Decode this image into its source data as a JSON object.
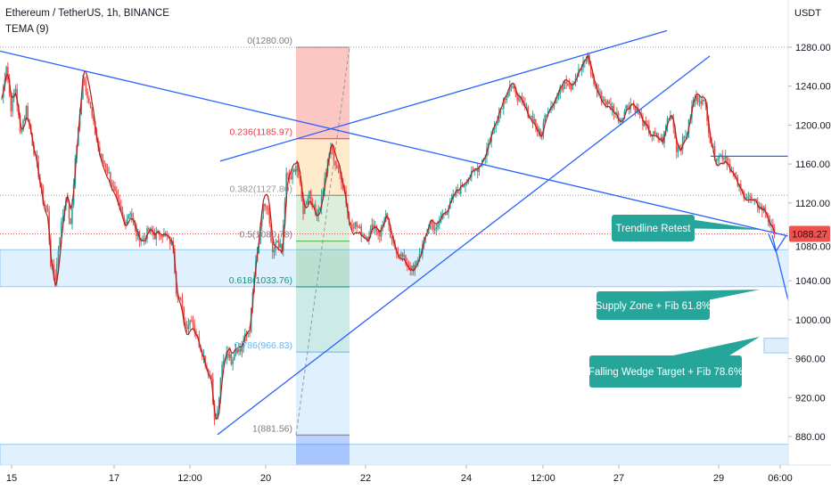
{
  "header": {
    "symbol_line": "Ethereum / TetherUS, 1h, BINANCE",
    "indicator": "TEMA (9)"
  },
  "axis": {
    "currency": "USDT",
    "current_price_label": "1088.27"
  },
  "colors": {
    "up": "#26a69a",
    "down": "#ef5350",
    "trendline": "#2962ff",
    "callout": "#26a69a",
    "zone": "#bbdefb",
    "tema": "#b71c1c"
  },
  "fib": {
    "labels": [
      "0(1280.00)",
      "0.236(1185.97)",
      "0.382(1127.80)",
      "0.5(1080.78)",
      "0.618(1033.76)",
      "0.786(966.83)",
      "1(881.56)"
    ]
  },
  "callouts": {
    "trendline_retest": "Trendline Retest",
    "supply_zone": "Supply Zone + Fib 61.8%",
    "falling_wedge": "Falling Wedge Target + Fib 78.6%"
  },
  "chart_data": {
    "type": "candlestick",
    "title": "Ethereum / TetherUS, 1h, BINANCE",
    "ylabel": "USDT",
    "ylim": [
      840,
      1300
    ],
    "y_ticks": [
      880,
      920,
      960,
      1000,
      1040,
      1080,
      1120,
      1160,
      1200,
      1240,
      1280
    ],
    "x_ticks": [
      "15",
      "17",
      "12:00",
      "20",
      "22",
      "24",
      "12:00",
      "27",
      "29",
      "06:00"
    ],
    "last_price": 1088.27,
    "price_path": [
      [
        0,
        1228
      ],
      [
        3,
        1262
      ],
      [
        6,
        1218
      ],
      [
        9,
        1238
      ],
      [
        12,
        1192
      ],
      [
        16,
        1218
      ],
      [
        20,
        1182
      ],
      [
        24,
        1150
      ],
      [
        27,
        1122
      ],
      [
        30,
        1110
      ],
      [
        32,
        1058
      ],
      [
        35,
        1042
      ],
      [
        38,
        1088
      ],
      [
        42,
        1128
      ],
      [
        45,
        1095
      ],
      [
        48,
        1165
      ],
      [
        51,
        1210
      ],
      [
        53,
        1250
      ],
      [
        56,
        1232
      ],
      [
        60,
        1200
      ],
      [
        64,
        1170
      ],
      [
        68,
        1158
      ],
      [
        72,
        1140
      ],
      [
        76,
        1118
      ],
      [
        80,
        1100
      ],
      [
        84,
        1112
      ],
      [
        88,
        1088
      ],
      [
        92,
        1082
      ],
      [
        96,
        1092
      ],
      [
        100,
        1086
      ],
      [
        104,
        1090
      ],
      [
        108,
        1084
      ],
      [
        112,
        1076
      ],
      [
        114,
        1030
      ],
      [
        117,
        1018
      ],
      [
        120,
        992
      ],
      [
        124,
        1002
      ],
      [
        128,
        980
      ],
      [
        132,
        962
      ],
      [
        134,
        950
      ],
      [
        137,
        940
      ],
      [
        139,
        895
      ],
      [
        141,
        905
      ],
      [
        144,
        952
      ],
      [
        147,
        968
      ],
      [
        150,
        958
      ],
      [
        153,
        972
      ],
      [
        156,
        968
      ],
      [
        159,
        982
      ],
      [
        162,
        990
      ],
      [
        165,
        1045
      ],
      [
        168,
        1078
      ],
      [
        171,
        1120
      ],
      [
        174,
        1110
      ],
      [
        177,
        1065
      ],
      [
        180,
        1082
      ],
      [
        183,
        1070
      ],
      [
        186,
        1148
      ],
      [
        189,
        1145
      ],
      [
        193,
        1160
      ],
      [
        197,
        1112
      ],
      [
        201,
        1132
      ],
      [
        205,
        1108
      ],
      [
        208,
        1118
      ],
      [
        212,
        1152
      ],
      [
        215,
        1178
      ],
      [
        218,
        1160
      ],
      [
        221,
        1150
      ],
      [
        224,
        1132
      ],
      [
        227,
        1100
      ],
      [
        231,
        1098
      ],
      [
        235,
        1090
      ],
      [
        239,
        1085
      ],
      [
        243,
        1098
      ],
      [
        247,
        1088
      ],
      [
        251,
        1108
      ],
      [
        255,
        1078
      ],
      [
        259,
        1070
      ],
      [
        263,
        1062
      ],
      [
        266,
        1056
      ],
      [
        269,
        1050
      ],
      [
        272,
        1062
      ],
      [
        276,
        1080
      ],
      [
        280,
        1100
      ],
      [
        284,
        1092
      ],
      [
        288,
        1108
      ],
      [
        292,
        1115
      ],
      [
        296,
        1128
      ],
      [
        300,
        1135
      ],
      [
        304,
        1145
      ],
      [
        308,
        1150
      ],
      [
        312,
        1158
      ],
      [
        316,
        1170
      ],
      [
        320,
        1190
      ],
      [
        324,
        1208
      ],
      [
        328,
        1226
      ],
      [
        332,
        1240
      ],
      [
        336,
        1232
      ],
      [
        340,
        1222
      ],
      [
        344,
        1212
      ],
      [
        348,
        1205
      ],
      [
        352,
        1188
      ],
      [
        356,
        1215
      ],
      [
        360,
        1222
      ],
      [
        364,
        1232
      ],
      [
        368,
        1248
      ],
      [
        372,
        1240
      ],
      [
        376,
        1252
      ],
      [
        380,
        1262
      ],
      [
        383,
        1270
      ],
      [
        386,
        1248
      ],
      [
        389,
        1236
      ],
      [
        392,
        1228
      ],
      [
        396,
        1222
      ],
      [
        400,
        1216
      ],
      [
        404,
        1205
      ],
      [
        408,
        1218
      ],
      [
        412,
        1222
      ],
      [
        416,
        1212
      ],
      [
        420,
        1200
      ],
      [
        424,
        1192
      ],
      [
        428,
        1188
      ],
      [
        432,
        1184
      ],
      [
        435,
        1206
      ],
      [
        438,
        1210
      ],
      [
        441,
        1176
      ],
      [
        444,
        1180
      ],
      [
        448,
        1194
      ],
      [
        452,
        1225
      ],
      [
        456,
        1228
      ],
      [
        460,
        1220
      ],
      [
        463,
        1185
      ],
      [
        466,
        1168
      ],
      [
        470,
        1168
      ],
      [
        473,
        1168
      ],
      [
        476,
        1156
      ],
      [
        480,
        1142
      ],
      [
        484,
        1130
      ],
      [
        488,
        1126
      ],
      [
        492,
        1120
      ],
      [
        496,
        1115
      ],
      [
        499,
        1112
      ],
      [
        503,
        1094
      ],
      [
        505,
        1088
      ]
    ],
    "fibonacci_levels": [
      {
        "ratio": 0,
        "price": 1280.0
      },
      {
        "ratio": 0.236,
        "price": 1185.97
      },
      {
        "ratio": 0.382,
        "price": 1127.8
      },
      {
        "ratio": 0.5,
        "price": 1080.78
      },
      {
        "ratio": 0.618,
        "price": 1033.76
      },
      {
        "ratio": 0.786,
        "price": 966.83
      },
      {
        "ratio": 1,
        "price": 881.56
      }
    ],
    "annotations": [
      "Trendline Retest",
      "Supply Zone + Fib 61.8%",
      "Falling Wedge Target + Fib 78.6%"
    ]
  }
}
